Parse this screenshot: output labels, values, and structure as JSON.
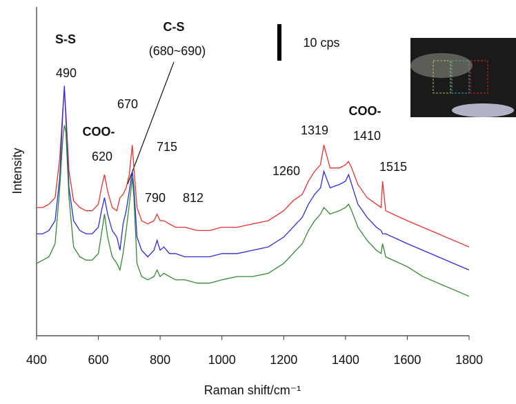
{
  "chart_data": {
    "type": "line",
    "xlabel": "Raman shift/cm⁻¹",
    "ylabel": "Intensity",
    "xlim": [
      400,
      1800
    ],
    "xticks": [
      400,
      600,
      800,
      1000,
      1200,
      1400,
      1600,
      1800
    ],
    "ylim": [
      0,
      100
    ],
    "x": [
      400,
      420,
      440,
      460,
      475,
      485,
      490,
      495,
      505,
      520,
      540,
      560,
      580,
      600,
      610,
      620,
      630,
      645,
      660,
      670,
      680,
      690,
      700,
      710,
      715,
      725,
      740,
      760,
      780,
      790,
      800,
      812,
      830,
      850,
      880,
      920,
      960,
      1000,
      1050,
      1100,
      1150,
      1200,
      1230,
      1260,
      1280,
      1300,
      1319,
      1330,
      1350,
      1380,
      1400,
      1410,
      1420,
      1440,
      1470,
      1500,
      1515,
      1520,
      1530,
      1600,
      1650,
      1700,
      1750,
      1800
    ],
    "series": [
      {
        "color": "#e8312a",
        "values": [
          39,
          39,
          40,
          42,
          54,
          69,
          75,
          68,
          50,
          41,
          39,
          38,
          38,
          40,
          45,
          49,
          44,
          39,
          38,
          42,
          43,
          45,
          49,
          58,
          51,
          39,
          35,
          34,
          35,
          37,
          35,
          35,
          34,
          33,
          33,
          32,
          32,
          33,
          33,
          34,
          35,
          38,
          41,
          43,
          47,
          50,
          52,
          58,
          51,
          51,
          52,
          53,
          51,
          46,
          42,
          40,
          39,
          47,
          38,
          35,
          33,
          31,
          29,
          27
        ]
      },
      {
        "color": "#2a2ae0",
        "values": [
          31,
          31,
          32,
          35,
          48,
          68,
          76,
          66,
          45,
          35,
          32,
          31,
          31,
          33,
          38,
          42,
          37,
          32,
          30,
          26,
          34,
          38,
          44,
          50,
          45,
          30,
          26,
          24,
          26,
          29,
          26,
          27,
          25,
          25,
          24,
          24,
          24,
          25,
          25,
          26,
          27,
          30,
          33,
          36,
          40,
          43,
          45,
          50,
          45,
          46,
          47,
          49,
          46,
          40,
          36,
          33,
          32,
          31,
          31,
          28,
          26,
          24,
          22,
          20
        ]
      },
      {
        "color": "#2e8b2e",
        "values": [
          22,
          23,
          24,
          28,
          45,
          60,
          64,
          62,
          42,
          27,
          24,
          23,
          23,
          25,
          31,
          37,
          30,
          24,
          22,
          20,
          25,
          32,
          40,
          48,
          42,
          22,
          18,
          17,
          18,
          20,
          18,
          19,
          18,
          17,
          17,
          16,
          16,
          17,
          18,
          18,
          19,
          22,
          25,
          28,
          32,
          35,
          37,
          39,
          37,
          38,
          39,
          40,
          38,
          33,
          29,
          26,
          25,
          28,
          24,
          21,
          18,
          16,
          14,
          12
        ]
      }
    ],
    "annotations": [
      "S-S",
      "490",
      "C-S",
      "(680~690)",
      "670",
      "COO-",
      "620",
      "715",
      "790",
      "812",
      "1260",
      "1319",
      "COO-",
      "1410",
      "1515",
      "10 cps"
    ]
  }
}
